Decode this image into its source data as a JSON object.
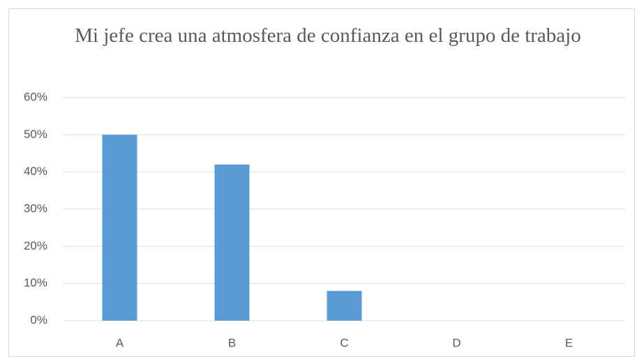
{
  "chart_data": {
    "type": "bar",
    "title": "Mi jefe crea una atmosfera de confianza en el grupo de trabajo",
    "categories": [
      "A",
      "B",
      "C",
      "D",
      "E"
    ],
    "values": [
      50,
      42,
      8,
      0,
      0
    ],
    "color": "#5b9bd5",
    "ylim": [
      0,
      60
    ],
    "yticks": [
      {
        "value": 0,
        "label": "0%"
      },
      {
        "value": 10,
        "label": "10%"
      },
      {
        "value": 20,
        "label": "20%"
      },
      {
        "value": 30,
        "label": "30%"
      },
      {
        "value": 40,
        "label": "40%"
      },
      {
        "value": 50,
        "label": "50%"
      },
      {
        "value": 60,
        "label": "60%"
      }
    ],
    "grid": true
  }
}
